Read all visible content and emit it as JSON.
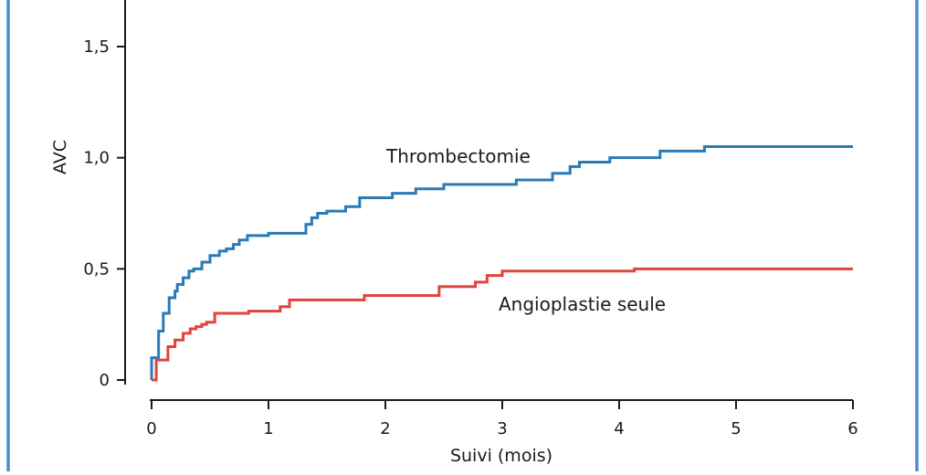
{
  "chart_data": {
    "type": "line",
    "subtype": "step",
    "xlabel": "Suivi (mois)",
    "ylabel": "AVC",
    "xlim": [
      0,
      6
    ],
    "ylim": [
      0,
      1.7
    ],
    "x_ticks": [
      0,
      1,
      2,
      3,
      4,
      5,
      6
    ],
    "x_tick_labels": [
      "0",
      "1",
      "2",
      "3",
      "4",
      "5",
      "6"
    ],
    "y_ticks": [
      0,
      0.5,
      1.0,
      1.5
    ],
    "y_tick_labels": [
      "0",
      "0,5",
      "1,0",
      "1,5"
    ],
    "grid": false,
    "series": [
      {
        "name": "Thrombectomie",
        "color": "#2a7ab5",
        "x": [
          0,
          0.06,
          0.1,
          0.15,
          0.2,
          0.22,
          0.27,
          0.32,
          0.36,
          0.43,
          0.5,
          0.58,
          0.64,
          0.7,
          0.75,
          0.82,
          1.0,
          1.32,
          1.37,
          1.42,
          1.5,
          1.66,
          1.78,
          2.06,
          2.26,
          2.5,
          3.12,
          3.43,
          3.58,
          3.66,
          3.92,
          4.35,
          4.73,
          6.0
        ],
        "y": [
          0.1,
          0.22,
          0.3,
          0.37,
          0.4,
          0.43,
          0.46,
          0.49,
          0.5,
          0.53,
          0.56,
          0.58,
          0.59,
          0.61,
          0.63,
          0.65,
          0.66,
          0.7,
          0.73,
          0.75,
          0.76,
          0.78,
          0.82,
          0.84,
          0.86,
          0.88,
          0.9,
          0.93,
          0.96,
          0.98,
          1.0,
          1.03,
          1.05,
          1.05
        ]
      },
      {
        "name": "Angioplastie seule",
        "color": "#e0443c",
        "x": [
          0,
          0.04,
          0.14,
          0.2,
          0.27,
          0.33,
          0.38,
          0.43,
          0.47,
          0.54,
          0.83,
          1.1,
          1.18,
          1.82,
          2.46,
          2.77,
          2.87,
          3.0,
          4.13,
          6.0
        ],
        "y": [
          0.0,
          0.09,
          0.15,
          0.18,
          0.21,
          0.23,
          0.24,
          0.25,
          0.26,
          0.3,
          0.31,
          0.33,
          0.36,
          0.38,
          0.42,
          0.44,
          0.47,
          0.49,
          0.5,
          0.5
        ]
      }
    ]
  }
}
